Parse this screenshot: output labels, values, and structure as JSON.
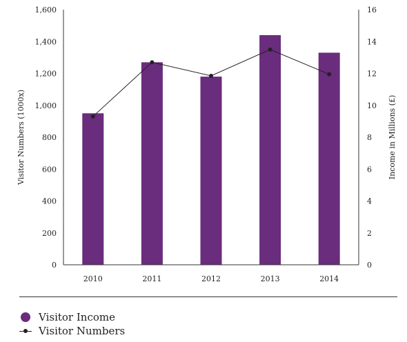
{
  "chart_data": {
    "type": "bar+line",
    "categories": [
      "2010",
      "2011",
      "2012",
      "2013",
      "2014"
    ],
    "series": [
      {
        "name": "Visitor Income",
        "type": "bar",
        "axis": "right",
        "values": [
          9.5,
          12.7,
          11.8,
          14.4,
          13.3
        ],
        "color": "#6a2c7c"
      },
      {
        "name": "Visitor Numbers",
        "type": "line",
        "axis": "left",
        "values": [
          930,
          1270,
          1185,
          1350,
          1195
        ],
        "color": "#222222"
      }
    ],
    "ylabel_left": "Visitor Numbers (1000x)",
    "ylabel_right": "Income in Millions (£)",
    "ylim_left": [
      0,
      1600
    ],
    "ylim_right": [
      0,
      16
    ],
    "yticks_left": [
      "0",
      "200",
      "400",
      "600",
      "800",
      "1,000",
      "1,200",
      "1,400",
      "1,600"
    ],
    "yticks_right": [
      "0",
      "2",
      "4",
      "6",
      "8",
      "10",
      "12",
      "14",
      "16"
    ],
    "grid": false,
    "legend_position": "bottom-left"
  },
  "legend": {
    "income_label": "Visitor Income",
    "numbers_label": "Visitor Numbers"
  }
}
